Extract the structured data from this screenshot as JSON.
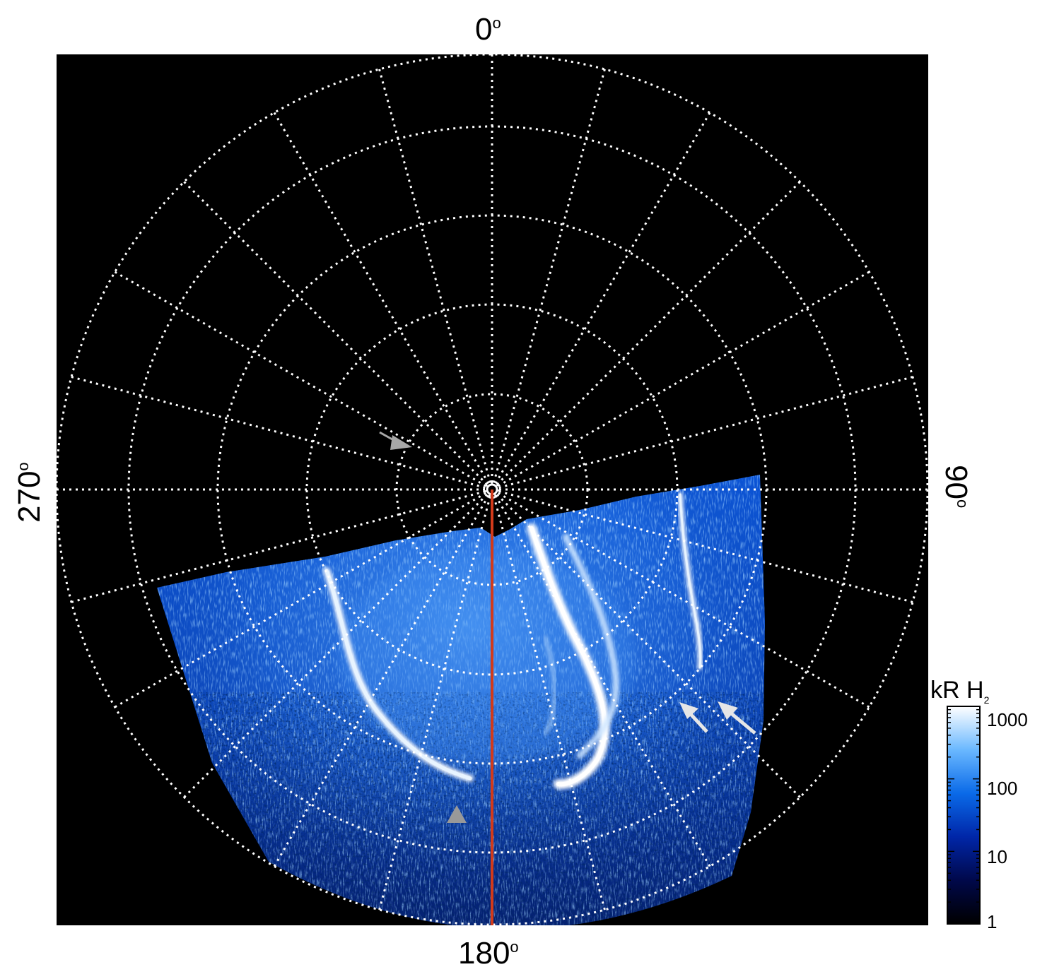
{
  "image": {
    "subject": "auroral polar projection",
    "background_color": "#000000",
    "grid_color": "#ffffff",
    "meridian_color": "#d23a1a",
    "arrow_white_color": "#e6e6e6",
    "arrow_grey_color": "#a0a0a0",
    "aurora_palette": [
      "#000010",
      "#00105a",
      "#0a4fd0",
      "#2f8cff",
      "#8cc8ff",
      "#ffffff"
    ]
  },
  "axis_labels": {
    "top": "0",
    "bottom": "180",
    "left": "270",
    "right": "90",
    "degree_symbol": "o"
  },
  "colorbar": {
    "title_main": "kR H",
    "title_sub": "2",
    "scale": "log",
    "range": [
      1,
      1000
    ],
    "ticks": [
      "1000",
      "100",
      "10",
      "1"
    ]
  }
}
